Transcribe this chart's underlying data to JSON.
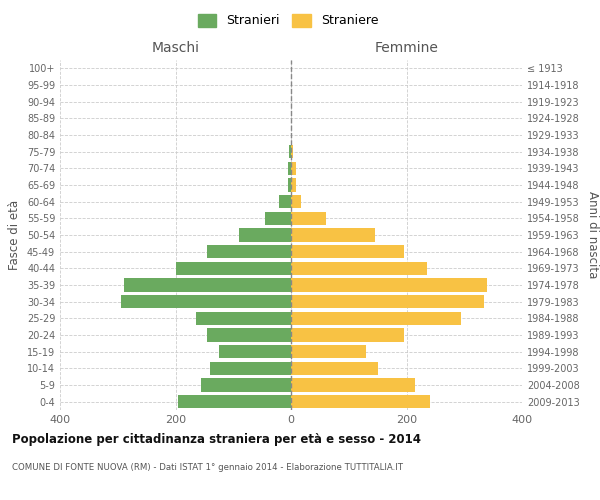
{
  "age_groups": [
    "0-4",
    "5-9",
    "10-14",
    "15-19",
    "20-24",
    "25-29",
    "30-34",
    "35-39",
    "40-44",
    "45-49",
    "50-54",
    "55-59",
    "60-64",
    "65-69",
    "70-74",
    "75-79",
    "80-84",
    "85-89",
    "90-94",
    "95-99",
    "100+"
  ],
  "birth_years": [
    "2009-2013",
    "2004-2008",
    "1999-2003",
    "1994-1998",
    "1989-1993",
    "1984-1988",
    "1979-1983",
    "1974-1978",
    "1969-1973",
    "1964-1968",
    "1959-1963",
    "1954-1958",
    "1949-1953",
    "1944-1948",
    "1939-1943",
    "1934-1938",
    "1929-1933",
    "1924-1928",
    "1919-1923",
    "1914-1918",
    "≤ 1913"
  ],
  "maschi": [
    195,
    155,
    140,
    125,
    145,
    165,
    295,
    290,
    200,
    145,
    90,
    45,
    20,
    5,
    5,
    3,
    0,
    0,
    0,
    0,
    0
  ],
  "femmine": [
    240,
    215,
    150,
    130,
    195,
    295,
    335,
    340,
    235,
    195,
    145,
    60,
    18,
    8,
    8,
    3,
    0,
    0,
    0,
    0,
    0
  ],
  "maschi_color": "#6aaa5f",
  "femmine_color": "#f8c244",
  "title": "Popolazione per cittadinanza straniera per età e sesso - 2014",
  "subtitle": "COMUNE DI FONTE NUOVA (RM) - Dati ISTAT 1° gennaio 2014 - Elaborazione TUTTITALIA.IT",
  "ylabel_left": "Fasce di età",
  "ylabel_right": "Anni di nascita",
  "xlabel_left": "Maschi",
  "xlabel_right": "Femmine",
  "legend_maschi": "Stranieri",
  "legend_femmine": "Straniere",
  "xlim": 400,
  "background_color": "#ffffff",
  "grid_color": "#cccccc",
  "bar_height": 0.8
}
